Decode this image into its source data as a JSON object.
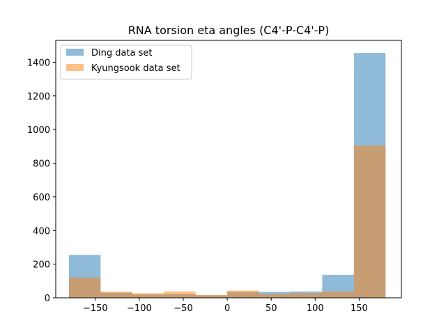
{
  "chart_data": {
    "type": "histogram",
    "title": "RNA torsion eta angles (C4'-P-C4'-P)",
    "xlabel": "",
    "ylabel": "",
    "xlim": [
      -195,
      198
    ],
    "ylim": [
      0,
      1530
    ],
    "xticks": [
      -150,
      -100,
      -50,
      0,
      50,
      100,
      150
    ],
    "xtick_labels": [
      "−150",
      "−100",
      "−50",
      "0",
      "50",
      "100",
      "150"
    ],
    "yticks": [
      0,
      200,
      400,
      600,
      800,
      1000,
      1200,
      1400
    ],
    "ytick_labels": [
      "0",
      "200",
      "400",
      "600",
      "800",
      "1000",
      "1200",
      "1400"
    ],
    "bin_edges": [
      -180,
      -144,
      -108,
      -72,
      -36,
      0,
      36,
      72,
      108,
      144,
      180
    ],
    "series": [
      {
        "name": "Ding data set",
        "color": "#1f77b4",
        "alpha": 0.5,
        "values": [
          255,
          30,
          20,
          22,
          15,
          35,
          35,
          38,
          137,
          1455
        ]
      },
      {
        "name": "Kyungsook data set",
        "color": "#ff7f0e",
        "alpha": 0.5,
        "values": [
          120,
          37,
          27,
          38,
          17,
          43,
          22,
          28,
          37,
          905
        ]
      }
    ],
    "legend_position": "upper-left",
    "grid": false
  }
}
